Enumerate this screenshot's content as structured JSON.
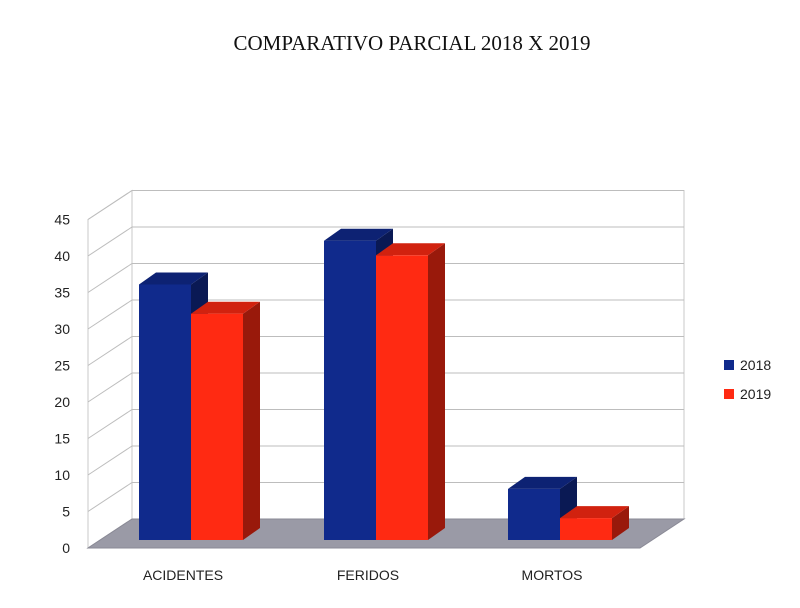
{
  "chart_data": {
    "type": "bar",
    "title": "COMPARATIVO PARCIAL 2018 X 2019",
    "categories": [
      "ACIDENTES",
      "FERIDOS",
      "MORTOS"
    ],
    "series": [
      {
        "name": "2018",
        "values": [
          35,
          41,
          7
        ],
        "color": "#102a8c"
      },
      {
        "name": "2019",
        "values": [
          31,
          39,
          3
        ],
        "color": "#ff2a12"
      }
    ],
    "yticks": [
      "0",
      "5",
      "10",
      "15",
      "20",
      "25",
      "30",
      "35",
      "40",
      "45"
    ],
    "ylim": [
      0,
      45
    ],
    "grid": true,
    "legend": "right",
    "style": "3d"
  }
}
